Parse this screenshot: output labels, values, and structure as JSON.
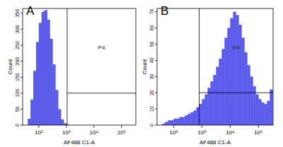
{
  "chart_data": [
    {
      "type": "histogram",
      "title": "A",
      "x_label": "AF488 C1-A",
      "y_label": "Count",
      "log": "x",
      "grid": false,
      "color": "#5b5bea",
      "xlim": [
        26,
        330000
      ],
      "ylim": [
        0,
        365
      ],
      "xticks": [
        {
          "value": 100,
          "label": "10²"
        },
        {
          "value": 1000,
          "label": "10³"
        },
        {
          "value": 10000,
          "label": "10⁴"
        },
        {
          "value": 100000,
          "label": "10⁵"
        }
      ],
      "yticks": [
        0,
        50,
        100,
        150,
        200,
        250,
        300,
        350
      ],
      "bins": [
        31.6,
        39.8,
        50.1,
        63.1,
        79.4,
        100,
        126,
        158,
        200,
        251,
        316,
        398,
        501,
        631,
        794,
        1000,
        1259,
        1585,
        1995,
        2512,
        3162,
        3981,
        5012,
        6310,
        7943,
        10000,
        12589,
        15849,
        19953,
        25119,
        31623,
        39811,
        50119,
        63096,
        79433,
        100000,
        125893,
        158489,
        199526,
        251189,
        316228
      ],
      "counts": [
        0,
        20,
        80,
        170,
        260,
        320,
        355,
        360,
        330,
        270,
        190,
        110,
        50,
        18,
        6,
        2,
        0,
        0,
        0,
        0,
        0,
        0,
        0,
        0,
        0,
        0,
        0,
        0,
        0,
        0,
        0,
        0,
        0,
        0,
        0,
        0,
        0,
        0,
        0,
        0
      ],
      "gate": {
        "label": "P4",
        "x": 1070,
        "count": 100
      }
    },
    {
      "type": "histogram",
      "title": "B",
      "x_label": "AF488 C1-A",
      "y_label": "Count",
      "log": "x",
      "grid": false,
      "color": "#5b5bea",
      "xlim": [
        26,
        330000
      ],
      "ylim": [
        0,
        72
      ],
      "xticks": [
        {
          "value": 100,
          "label": "10²"
        },
        {
          "value": 1000,
          "label": "10³"
        },
        {
          "value": 10000,
          "label": "10⁴"
        },
        {
          "value": 100000,
          "label": "10⁵"
        }
      ],
      "yticks": [
        0,
        10,
        20,
        30,
        40,
        50,
        60,
        70
      ],
      "bins": [
        31.6,
        39.8,
        50.1,
        63.1,
        79.4,
        100,
        126,
        158,
        200,
        251,
        316,
        398,
        501,
        631,
        794,
        1000,
        1259,
        1585,
        1995,
        2512,
        3162,
        3981,
        5012,
        6310,
        7943,
        10000,
        12589,
        15849,
        19953,
        25119,
        31623,
        39811,
        50119,
        63096,
        79433,
        100000,
        125893,
        158489,
        199526,
        251189,
        316228
      ],
      "counts": [
        0,
        1,
        2,
        3,
        3,
        4,
        4,
        5,
        5,
        6,
        7,
        8,
        9,
        11,
        13,
        16,
        19,
        23,
        27,
        31,
        36,
        41,
        47,
        54,
        60,
        66,
        70,
        68,
        62,
        54,
        45,
        37,
        30,
        24,
        19,
        16,
        14,
        13,
        15,
        22
      ],
      "gate": {
        "label": "P4",
        "x": 800,
        "count": 20
      }
    }
  ]
}
